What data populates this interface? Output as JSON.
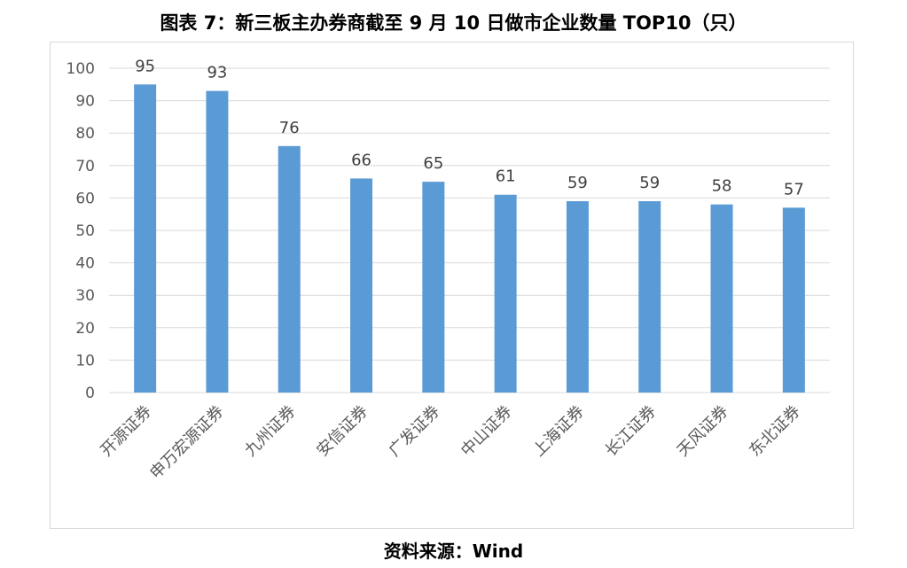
{
  "title": "图表 7：新三板主办券商截至 9 月 10 日做市企业数量 TOP10（只）",
  "source": "资料来源：Wind",
  "colors": {
    "bar": "#5b9bd5",
    "grid": "#d9d9d9",
    "axis_text": "#595959",
    "label_text": "#404040"
  },
  "chart_data": {
    "type": "bar",
    "title": "图表 7：新三板主办券商截至 9 月 10 日做市企业数量 TOP10（只）",
    "xlabel": "",
    "ylabel": "",
    "categories": [
      "开源证券",
      "申万宏源证券",
      "九州证券",
      "安信证券",
      "广发证券",
      "中山证券",
      "上海证券",
      "长江证券",
      "天风证券",
      "东北证券"
    ],
    "values": [
      95,
      93,
      76,
      66,
      65,
      61,
      59,
      59,
      58,
      57
    ],
    "ylim": [
      0,
      100
    ],
    "yticks": [
      0,
      10,
      20,
      30,
      40,
      50,
      60,
      70,
      80,
      90,
      100
    ],
    "data_labels": true,
    "grid": true,
    "legend": "none"
  }
}
